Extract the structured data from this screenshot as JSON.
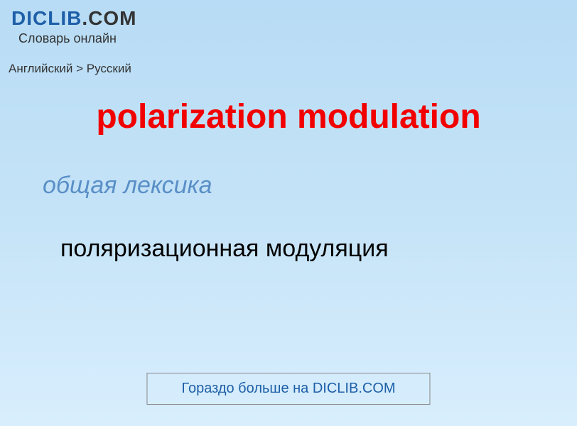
{
  "header": {
    "site_name_part1": "DICLIB",
    "site_name_part2": ".COM",
    "subtitle": "Словарь онлайн"
  },
  "breadcrumb": {
    "text": "Английский > Русский"
  },
  "entry": {
    "term": "polarization modulation",
    "category": "общая лексика",
    "definition": "поляризационная модуляция"
  },
  "footer": {
    "link_text": "Гораздо больше на DICLIB.COM"
  },
  "colors": {
    "term_color": "#f20000",
    "category_color": "#5a8fc7",
    "brand_blue": "#1e5fa8",
    "text_dark": "#333",
    "bg_gradient_top": "#b8dcf5",
    "bg_gradient_bottom": "#d8eefd"
  }
}
